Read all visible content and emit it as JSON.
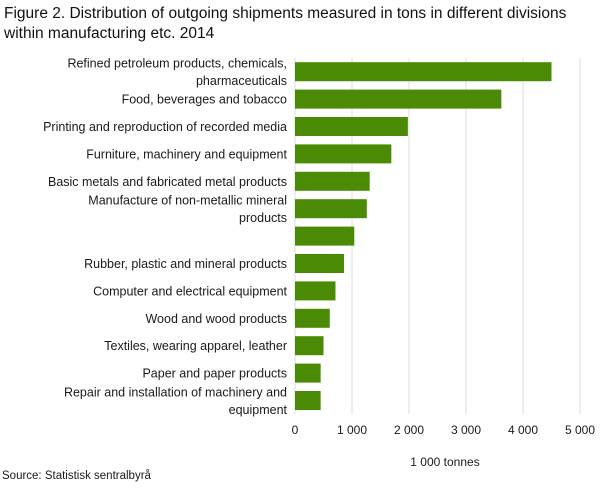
{
  "figure": {
    "title": "Figure 2. Distribution of outgoing shipments measured in tons in different divisions within manufacturing  etc. 2014",
    "source": "Source: Statistisk sentralbyrå"
  },
  "colors": {
    "bar": "#4a8a04",
    "grid": "#dcdcdc",
    "text": "#1a1a1a"
  },
  "chart_data": {
    "type": "bar",
    "orientation": "horizontal",
    "categories": [
      [
        "Refined  petroleum  products,  chemicals,",
        "pharmaceuticals"
      ],
      [
        "Food, beverages and tobacco"
      ],
      [
        "Printing and reproduction of recorded media"
      ],
      [
        "Furniture, machinery and equipment"
      ],
      [
        "Basic metals and fabricated metal products"
      ],
      [
        "Manufacture  of non-metallic  mineral",
        "products"
      ],
      [
        ""
      ],
      [
        "Rubber, plastic and mineral products"
      ],
      [
        "Computer and electrical equipment"
      ],
      [
        "Wood and wood products"
      ],
      [
        "Textiles, wearing apparel, leather"
      ],
      [
        "Paper and paper products"
      ],
      [
        "Repair  and installation  of machinery  and",
        "equipment"
      ]
    ],
    "values": [
      4500,
      3620,
      1980,
      1690,
      1310,
      1260,
      1040,
      860,
      710,
      610,
      500,
      450,
      450
    ],
    "xlabel": "1 000 tonnes",
    "xlim": [
      0,
      5000
    ],
    "xticks": [
      0,
      1000,
      2000,
      3000,
      4000,
      5000
    ],
    "xtick_labels": [
      "0",
      "1 000",
      "2 000",
      "3 000",
      "4 000",
      "5 000"
    ],
    "grid": true,
    "legend": "none"
  }
}
